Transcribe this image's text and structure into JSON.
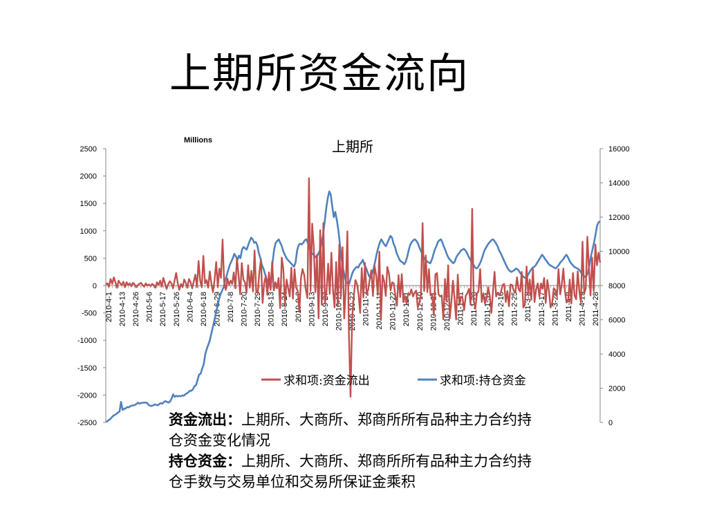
{
  "slide": {
    "title": "上期所资金流向",
    "notes": [
      {
        "term": "资金流出：",
        "text": "上期所、大商所、郑商所所有品种主力合约持仓资金变化情况"
      },
      {
        "term": "持仓资金：",
        "text": "上期所、大商所、郑商所所有品种主力合约持仓手数与交易单位和交易所保证金乘积"
      }
    ]
  },
  "chart_data": {
    "type": "line",
    "title": "上期所",
    "unit_label": "Millions",
    "left_axis": {
      "min": -2500,
      "max": 2500,
      "step": 500,
      "ticks": [
        "2500",
        "2000",
        "1500",
        "1000",
        "500",
        "0",
        "-500",
        "-1000",
        "-1500",
        "-2000",
        "-2500"
      ]
    },
    "right_axis": {
      "min": 0,
      "max": 16000,
      "step": 2000,
      "ticks": [
        "16000",
        "14000",
        "12000",
        "10000",
        "8000",
        "6000",
        "4000",
        "2000",
        "0"
      ]
    },
    "x_labels": [
      "2010-4-1",
      "2010-4-13",
      "2010-4-26",
      "2010-5-6",
      "2010-5-17",
      "2010-5-26",
      "2010-6-4",
      "2010-6-18",
      "2010-6-29",
      "2010-7-8",
      "2010-7-20",
      "2010-7-29",
      "2010-8-13",
      "2010-8-24",
      "2010-9-2",
      "2010-9-13",
      "2010-9-27",
      "2010-10-13",
      "2010-10-22",
      "2010-11-2",
      "2010-11-11",
      "2010-11-22",
      "2010-12-1",
      "2010-12-10",
      "2010-12-21",
      "2010-12-30",
      "2011-1-11",
      "2011-1-20",
      "2011-1-31",
      "2011-2-16",
      "2011-2-25",
      "2011-3-8",
      "2011-3-17",
      "2011-3-28",
      "2011-4-8",
      "2011-4-19",
      "2011-4-28"
    ],
    "legend_position": "bottom",
    "series": [
      {
        "name": "求和项:资金流出",
        "axis": "left",
        "color": "#C0504D",
        "values": [
          20,
          40,
          -20,
          120,
          30,
          150,
          60,
          -40,
          90,
          40,
          10,
          70,
          -30,
          60,
          10,
          40,
          -10,
          50,
          20,
          -30,
          10,
          30,
          50,
          10,
          -20,
          40,
          0,
          20,
          -10,
          30,
          10,
          -40,
          60,
          10,
          90,
          -20,
          140,
          40,
          -60,
          20,
          80,
          40,
          -50,
          90,
          230,
          40,
          -80,
          30,
          -30,
          110,
          50,
          -40,
          120,
          60,
          -50,
          80,
          200,
          -30,
          450,
          90,
          -30,
          540,
          40,
          100,
          -40,
          260,
          40,
          -120,
          100,
          430,
          -30,
          310,
          140,
          840,
          60,
          -80,
          130,
          10,
          90,
          30,
          240,
          -50,
          500,
          180,
          -160,
          410,
          110,
          60,
          -130,
          370,
          -40,
          270,
          -110,
          640,
          -100,
          -140,
          240,
          480,
          -320,
          40,
          180,
          -170,
          240,
          -80,
          430,
          -90,
          60,
          -50,
          140,
          -410,
          510,
          300,
          -350,
          110,
          -50,
          -200,
          330,
          -240,
          300,
          -40,
          -100,
          -480,
          140,
          300,
          200,
          -60,
          -230,
          1960,
          -100,
          1130,
          700,
          -120,
          560,
          -600,
          1010,
          -350,
          1140,
          -330,
          -100,
          400,
          -150,
          600,
          -80,
          -400,
          430,
          -380,
          750,
          -200,
          700,
          -600,
          -50,
          990,
          -900,
          -2030,
          -600,
          -200,
          100,
          30,
          -160,
          -500,
          320,
          -220,
          410,
          -140,
          -80,
          120,
          280,
          -190,
          360,
          190,
          -170,
          620,
          -630,
          190,
          80,
          -190,
          340,
          220,
          -90,
          60,
          40,
          -180,
          -370,
          190,
          -210,
          210,
          -300,
          -190,
          -330,
          -150,
          -170,
          -70,
          -200,
          -130,
          -90,
          -400,
          -320,
          -160,
          1140,
          -100,
          550,
          -120,
          300,
          -180,
          -150,
          -540,
          200,
          230,
          -160,
          -200,
          -180,
          -620,
          120,
          -290,
          370,
          -600,
          -300,
          90,
          -240,
          -620,
          200,
          -350,
          -200,
          -230,
          -450,
          -190,
          -140,
          -60,
          -350,
          1400,
          -280,
          -420,
          -150,
          -100,
          300,
          -300,
          -140,
          -330,
          -250,
          -30,
          -180,
          -500,
          -100,
          250,
          -200,
          -130,
          -180,
          -120,
          10,
          30,
          -300,
          -100,
          -380,
          20,
          10,
          -90,
          -130,
          150,
          -60,
          -110,
          250,
          -400,
          -350,
          350,
          -150,
          110,
          -260,
          300,
          -300,
          -70,
          40,
          -200,
          40,
          -60,
          140,
          -320,
          100,
          -100,
          -400,
          -320,
          -50,
          -80,
          -200,
          300,
          -160,
          20,
          310,
          -100,
          -310,
          -280,
          110,
          -330,
          230,
          -180,
          -250,
          260,
          -110,
          -310,
          800,
          -150,
          -50,
          890,
          320,
          -180,
          510,
          -100,
          750,
          370,
          600,
          420
        ]
      },
      {
        "name": "求和项:持仓资金",
        "axis": "right",
        "color": "#4F81BD",
        "values": [
          40,
          60,
          150,
          200,
          310,
          400,
          450,
          500,
          580,
          640,
          1200,
          730,
          800,
          820,
          900,
          880,
          950,
          980,
          1000,
          1020,
          1080,
          1150,
          1100,
          1130,
          1150,
          1160,
          1160,
          1140,
          1020,
          980,
          960,
          1000,
          1050,
          1030,
          1000,
          1080,
          1130,
          1100,
          1200,
          1250,
          1200,
          1160,
          1220,
          1400,
          1640,
          1500,
          1560,
          1520,
          1550,
          1530,
          1580,
          1560,
          1650,
          1700,
          1760,
          1860,
          1850,
          1950,
          2120,
          2180,
          2500,
          2800,
          2850,
          3150,
          3400,
          4000,
          4300,
          4550,
          4800,
          5200,
          5600,
          6000,
          6400,
          6800,
          7200,
          7500,
          7700,
          7900,
          8300,
          8600,
          8900,
          9200,
          9400,
          9600,
          9850,
          9700,
          9500,
          9750,
          9600,
          10100,
          10250,
          10180,
          10100,
          10350,
          10600,
          10800,
          10700,
          10500,
          10550,
          10350,
          9900,
          9600,
          9200,
          9000,
          8700,
          8400,
          8200,
          8000,
          8100,
          9400,
          10100,
          10500,
          10600,
          10700,
          10500,
          10300,
          10000,
          9800,
          9600,
          9500,
          9400,
          9300,
          9200,
          9100,
          9350,
          10050,
          10350,
          10450,
          10400,
          10500,
          10650,
          10700,
          10500,
          10200,
          10000,
          9850,
          9800,
          9650,
          9700,
          9900,
          10050,
          10500,
          11000,
          11700,
          12500,
          13100,
          13500,
          13300,
          12600,
          12000,
          12300,
          11800,
          11200,
          10400,
          9600,
          9000,
          8600,
          8200,
          8150,
          8100,
          8400,
          8700,
          8900,
          9000,
          9100,
          9050,
          9250,
          9350,
          9500,
          9200,
          9050,
          8800,
          8550,
          8450,
          8700,
          9000,
          9400,
          9850,
          10200,
          10500,
          10700,
          10550,
          10400,
          10300,
          10500,
          10700,
          10900,
          10800,
          10450,
          10250,
          9900,
          9700,
          9500,
          9400,
          9350,
          9250,
          9400,
          9700,
          10100,
          10400,
          10550,
          10650,
          10700,
          10600,
          10450,
          10200,
          10000,
          9800,
          9600,
          9500,
          9400,
          9350,
          9300,
          9500,
          9800,
          10100,
          10300,
          10550,
          10650,
          10700,
          10500,
          10250,
          10050,
          9800,
          9600,
          9500,
          9400,
          9300,
          9400,
          9650,
          9800,
          9900,
          10050,
          10100,
          10150,
          10050,
          9900,
          9700,
          9550,
          9350,
          9250,
          9100,
          9000,
          9050,
          9200,
          9400,
          9650,
          9950,
          10150,
          10300,
          10450,
          10550,
          10650,
          10700,
          10600,
          10450,
          10300,
          10050,
          9900,
          9700,
          9500,
          9300,
          9100,
          8950,
          8850,
          8800,
          8850,
          8900,
          9000,
          8950,
          8850,
          8700,
          8600,
          8500,
          8450,
          8500,
          8650,
          8800,
          8950,
          9050,
          9100,
          9200,
          9350,
          9500,
          9650,
          9800,
          9700,
          9550,
          9450,
          9300,
          9200,
          9150,
          9100,
          9050,
          9000,
          9100,
          9200,
          9350,
          9450,
          9550,
          9700,
          9800,
          9650,
          9450,
          9300,
          9200,
          9100,
          9050,
          9000,
          8950,
          8850,
          8700,
          8600,
          8500,
          8550,
          8750,
          9200,
          9700,
          10100,
          10500,
          11000,
          11500,
          11700,
          11750
        ]
      }
    ]
  }
}
